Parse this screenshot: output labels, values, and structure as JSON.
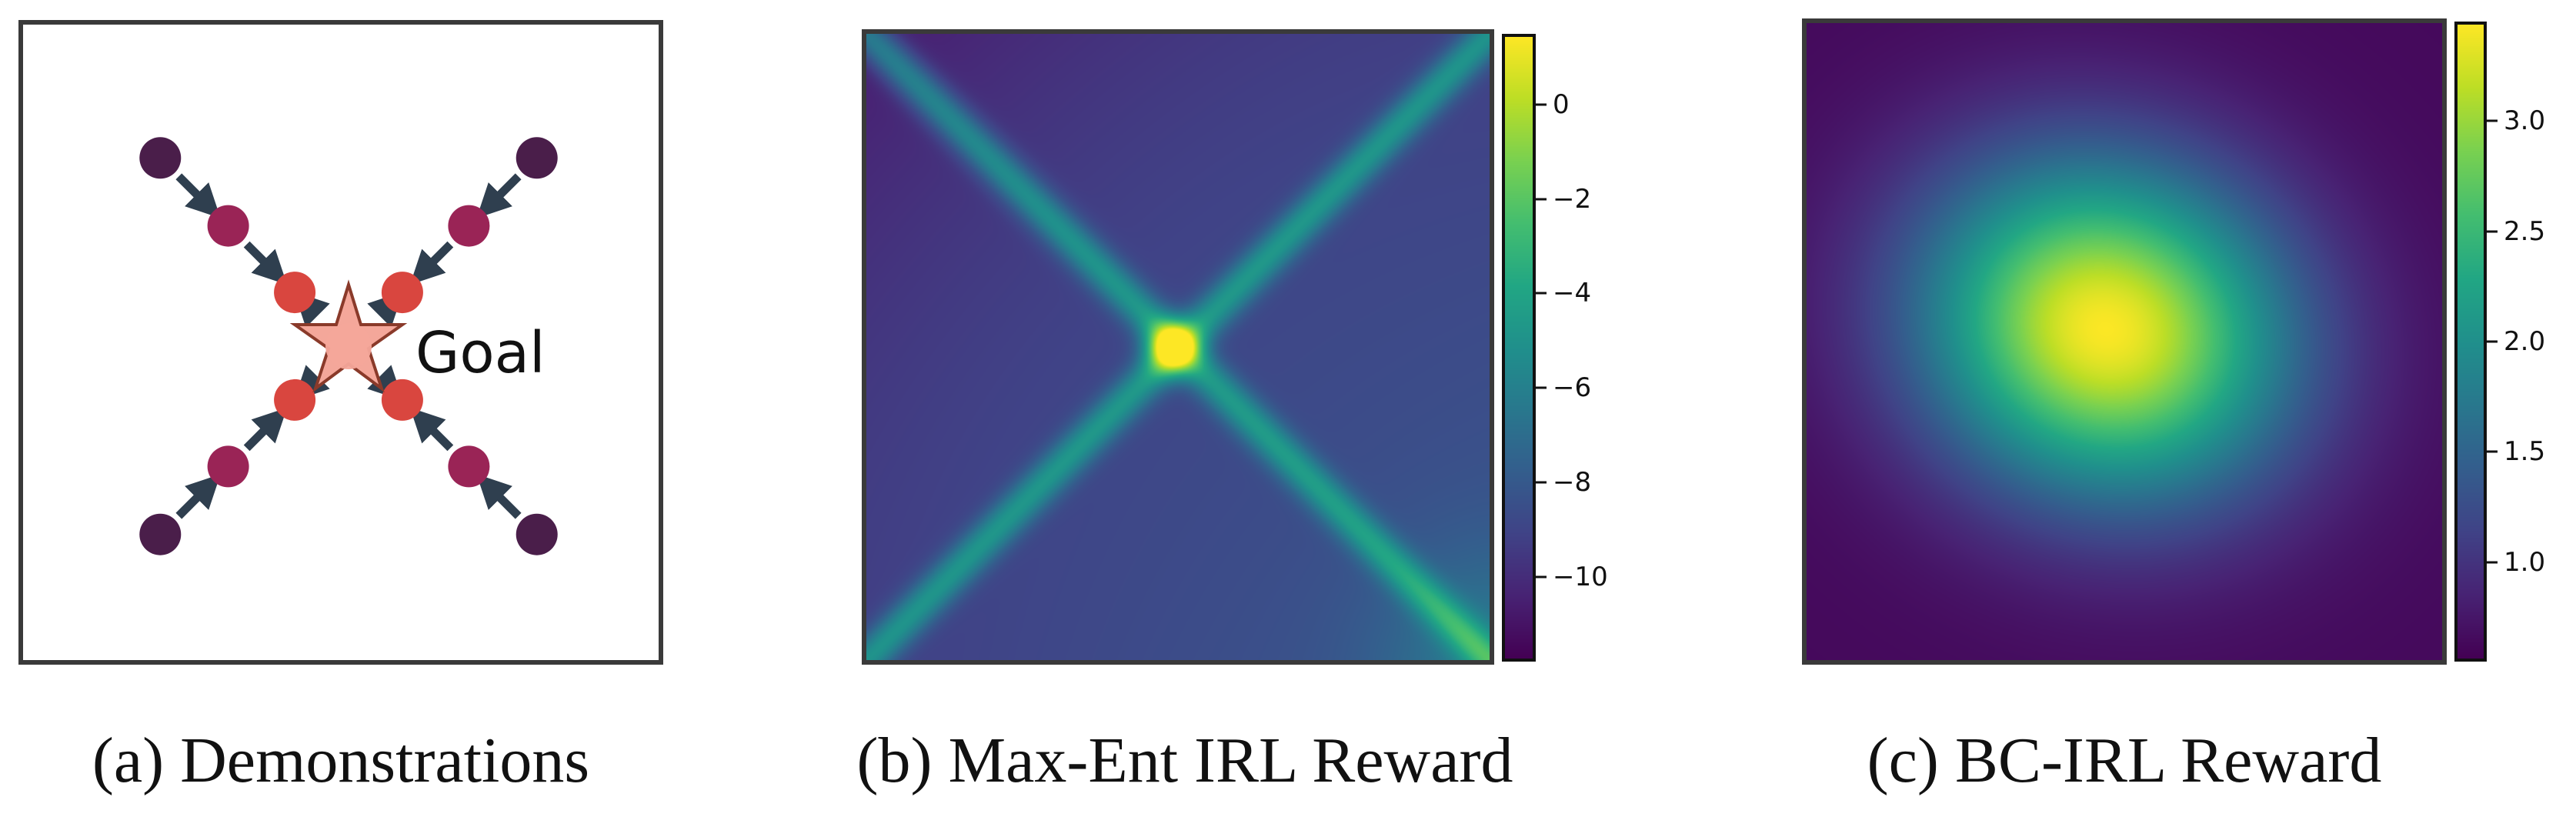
{
  "figure": {
    "panels": [
      {
        "id": "a",
        "caption": "(a) Demonstrations",
        "goal_label": "Goal",
        "colors": {
          "dot_far": "#4a1e4a",
          "dot_mid": "#9a2456",
          "dot_near": "#d9463f",
          "arrow": "#2f3f4f",
          "goal_star_fill": "#f4a79a",
          "goal_star_stroke": "#8a3a2a"
        }
      },
      {
        "id": "b",
        "caption": "(b) Max-Ent IRL Reward",
        "colorbar": {
          "ticks": [
            "0",
            "−2",
            "−4",
            "−6",
            "−8",
            "−10"
          ],
          "tick_values": [
            0,
            -2,
            -4,
            -6,
            -8,
            -10
          ],
          "range": [
            -11.8,
            1.5
          ],
          "colormap": "viridis"
        }
      },
      {
        "id": "c",
        "caption": "(c) BC-IRL Reward",
        "colorbar": {
          "ticks": [
            "3.0",
            "2.5",
            "2.0",
            "1.5",
            "1.0"
          ],
          "tick_values": [
            3.0,
            2.5,
            2.0,
            1.5,
            1.0
          ],
          "range": [
            0.55,
            3.45
          ],
          "colormap": "viridis"
        }
      }
    ]
  }
}
